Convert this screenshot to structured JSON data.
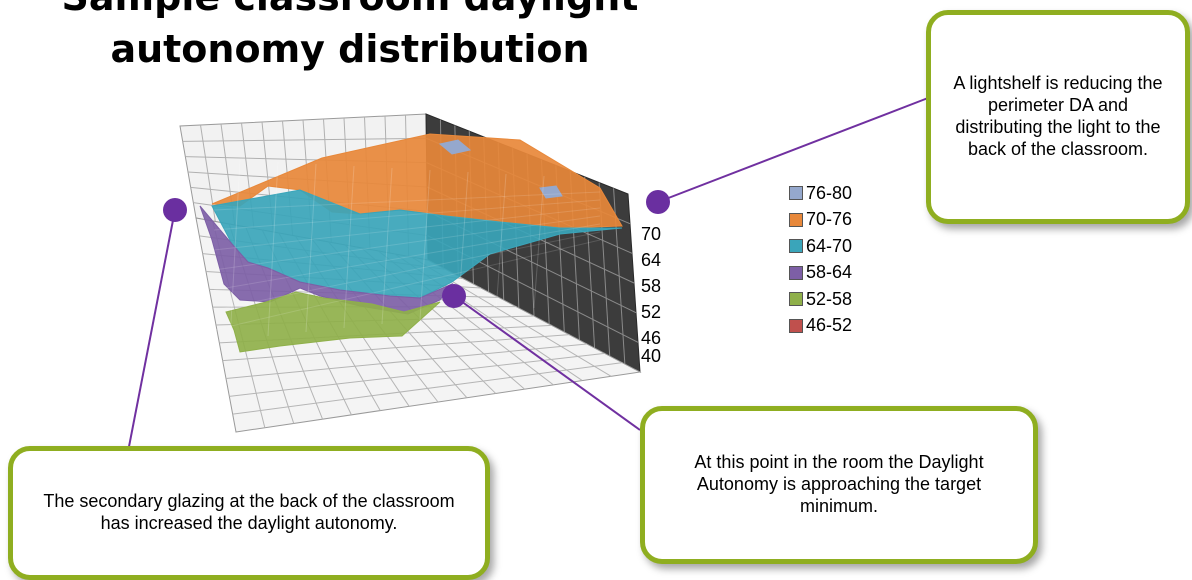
{
  "title_line1": "Sample classroom daylight",
  "title_line2": "autonomy distribution",
  "chart_data": {
    "type": "surface",
    "title": "Sample classroom daylight autonomy distribution",
    "z_ticks": [
      "70",
      "64",
      "58",
      "52",
      "46",
      "40"
    ],
    "z_range": [
      40,
      80
    ],
    "grid": true,
    "legend_position": "right",
    "legend": [
      {
        "label": "76-80",
        "color": "#95a8cd"
      },
      {
        "label": "70-76",
        "color": "#e8883a"
      },
      {
        "label": "64-70",
        "color": "#3aa5ba"
      },
      {
        "label": "58-64",
        "color": "#7d5fa6"
      },
      {
        "label": "52-58",
        "color": "#8fb04a"
      },
      {
        "label": "46-52",
        "color": "#c0504d"
      }
    ]
  },
  "callouts": {
    "lightshelf": "A lightshelf is reducing the perimeter DA and distributing the light to the back of the classroom.",
    "target": "At this point in the room the Daylight Autonomy is approaching the target minimum.",
    "secondary": "The secondary glazing at the back of the classroom has increased the daylight autonomy."
  },
  "colors": {
    "callout_border": "#8fae20",
    "marker": "#6a2fa0",
    "leader": "#7030a0"
  }
}
